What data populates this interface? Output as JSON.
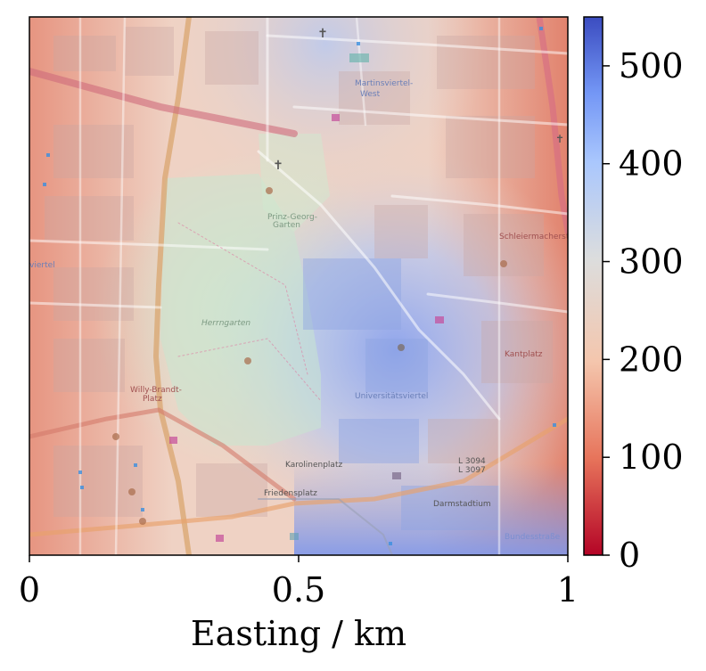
{
  "map": {
    "labels": [
      {
        "id": "martinsviertel",
        "text": "Martinsviertel-"
      },
      {
        "id": "west",
        "text": "West"
      },
      {
        "id": "herrngarten",
        "text": "Herrngarten"
      },
      {
        "id": "prinz-georg",
        "text": "Prinz-Georg-"
      },
      {
        "id": "garten",
        "text": "Garten"
      },
      {
        "id": "universitaetsviertel",
        "text": "Universitätsviertel"
      },
      {
        "id": "karolinenplatz",
        "text": "Karolinenplatz"
      },
      {
        "id": "friedensplatz",
        "text": "Friedensplatz"
      },
      {
        "id": "darmstadtium",
        "text": "Darmstadtium"
      },
      {
        "id": "willy-brandt",
        "text": "Willy-Brandt-"
      },
      {
        "id": "platz",
        "text": "Platz"
      },
      {
        "id": "viertel-left",
        "text": "viertel"
      },
      {
        "id": "l3094",
        "text": "L 3094"
      },
      {
        "id": "l3097",
        "text": "L 3097"
      },
      {
        "id": "schlossgarten",
        "text": "Schleiermacherstraße"
      },
      {
        "id": "kantplatz",
        "text": "Kantplatz"
      },
      {
        "id": "bundesstrasse",
        "text": "Bundesstraße"
      }
    ],
    "colors": {
      "low": "#b40426",
      "mid": "#dddcdc",
      "high": "#3b4cc0",
      "park": "#cfe8c9",
      "road": "#f6d7a8"
    }
  },
  "x_axis": {
    "label": "Easting / km",
    "ticks": [
      {
        "value": 0,
        "label": "0"
      },
      {
        "value": 0.5,
        "label": "0.5"
      },
      {
        "value": 1,
        "label": "1"
      }
    ],
    "range": [
      0,
      1
    ]
  },
  "colorbar": {
    "colormap": "coolwarm_r",
    "range": [
      0,
      550
    ],
    "ticks": [
      {
        "value": 0,
        "label": "0"
      },
      {
        "value": 100,
        "label": "100"
      },
      {
        "value": 200,
        "label": "200"
      },
      {
        "value": 300,
        "label": "300"
      },
      {
        "value": 400,
        "label": "400"
      },
      {
        "value": 500,
        "label": "500"
      }
    ]
  }
}
